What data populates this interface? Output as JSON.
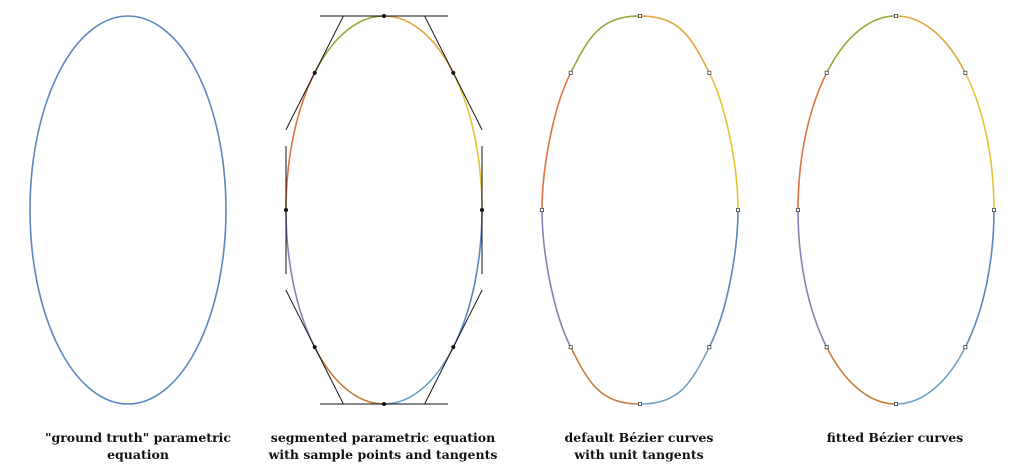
{
  "figure": {
    "captions": [
      {
        "lines": [
          "\"ground truth\" parametric equation"
        ]
      },
      {
        "lines": [
          "segmented parametric equation",
          "with sample points and tangents"
        ]
      },
      {
        "lines": [
          "default Bézier curves",
          "with unit tangents"
        ]
      },
      {
        "lines": [
          "fitted Bézier curves"
        ]
      }
    ],
    "segment_colors": [
      "#e8c234",
      "#e0a63a",
      "#8fab3c",
      "#e07045",
      "#8a7fb5",
      "#c47d3c",
      "#6fa2c8",
      "#5b86bd"
    ],
    "ground_truth_color": "#5b86bd",
    "tangent_color": "#111111",
    "point_color": "#111111"
  }
}
